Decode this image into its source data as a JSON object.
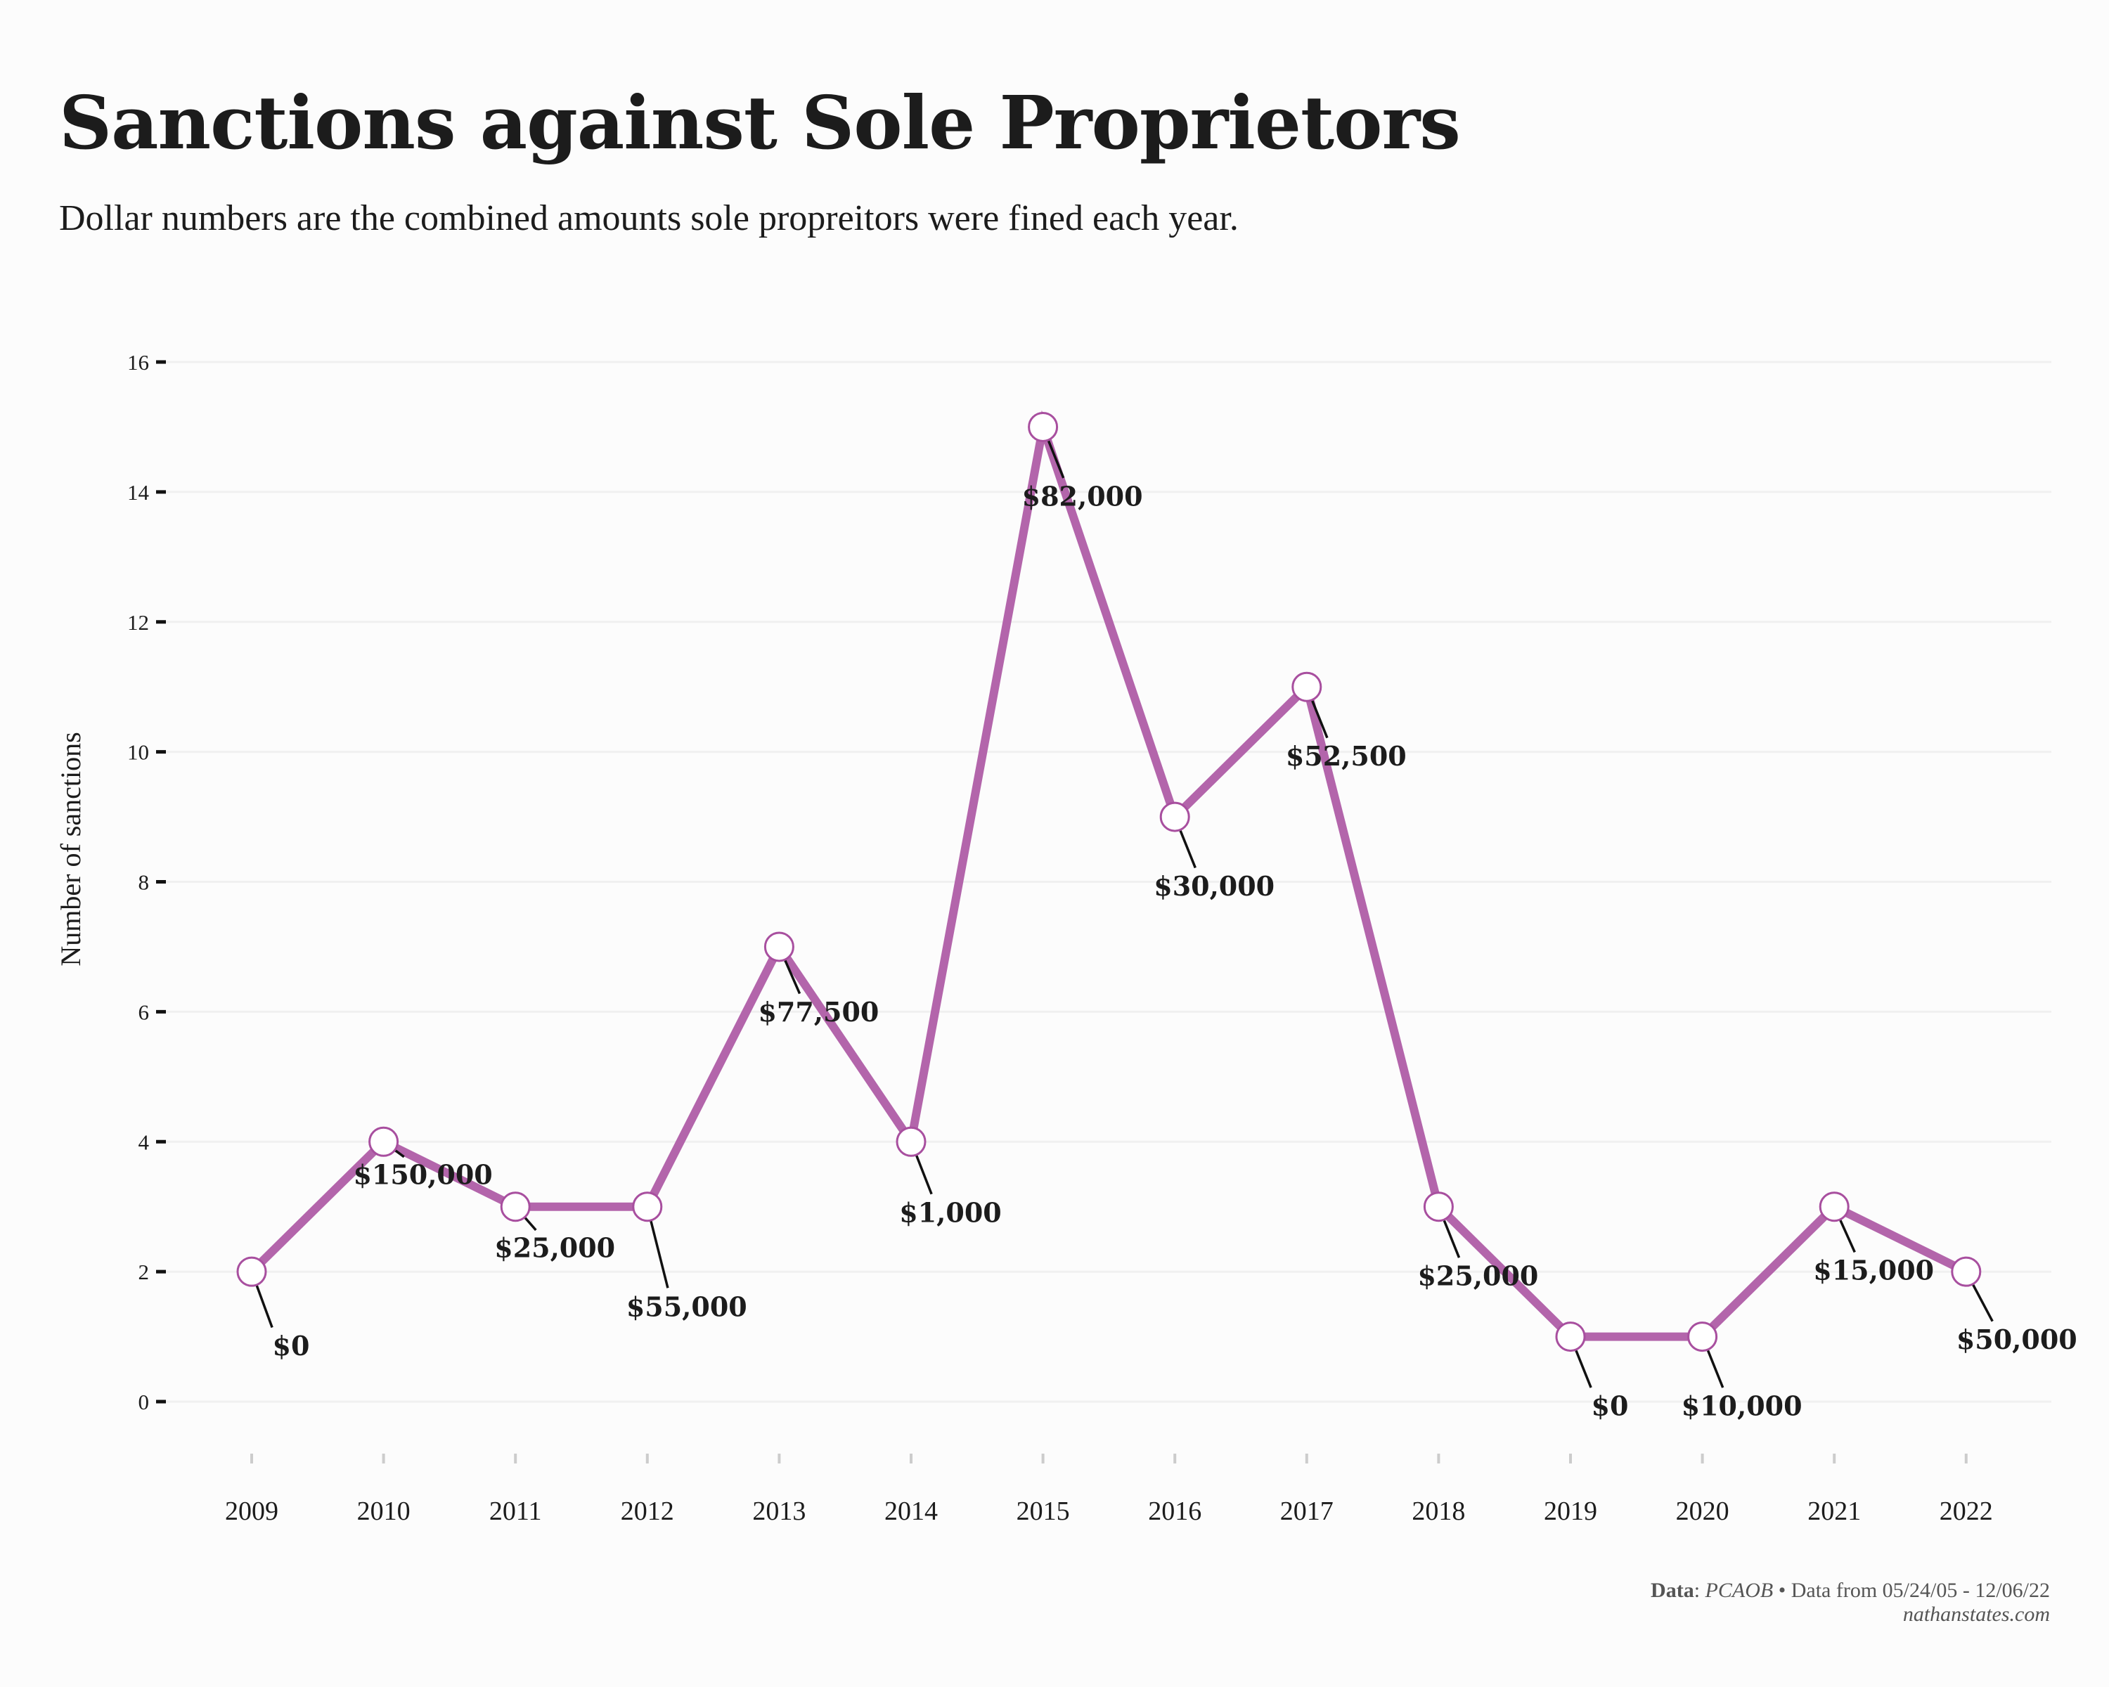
{
  "title": "Sanctions against Sole Proprietors",
  "subtitle": "Dollar numbers are the combined amounts sole propreitors were fined each year.",
  "caption": {
    "data_label": "Data",
    "source": "PCAOB",
    "separator": " • ",
    "range": "Data from 05/24/05 - 12/06/22",
    "site": "nathanstates.com"
  },
  "colors": {
    "line": "#b365ab",
    "marker_fill": "#ffffff",
    "marker_stroke": "#a84f9f",
    "grid": "#f0f0f0",
    "text": "#1c1c1c",
    "background": "#fcfcfc"
  },
  "chart_data": {
    "type": "line",
    "title": "Sanctions against Sole Proprietors",
    "xlabel": "",
    "ylabel": "Number of sanctions",
    "ylim": [
      -0.8,
      16
    ],
    "yticks": [
      0,
      2,
      4,
      6,
      8,
      10,
      12,
      14,
      16
    ],
    "grid": "horizontal",
    "categories": [
      "2009",
      "2010",
      "2011",
      "2012",
      "2013",
      "2014",
      "2015",
      "2016",
      "2017",
      "2018",
      "2019",
      "2020",
      "2021",
      "2022"
    ],
    "series": [
      {
        "values": [
          2,
          4,
          3,
          3,
          7,
          4,
          15,
          9,
          11,
          3,
          1,
          1,
          3,
          2
        ]
      }
    ],
    "annotations": [
      "$0",
      "$150,000",
      "$25,000",
      "$55,000",
      "$77,500",
      "$1,000",
      "$82,000",
      "$30,000",
      "$52,500",
      "$25,000",
      "$0",
      "$10,000",
      "$15,000",
      "$50,000"
    ]
  }
}
